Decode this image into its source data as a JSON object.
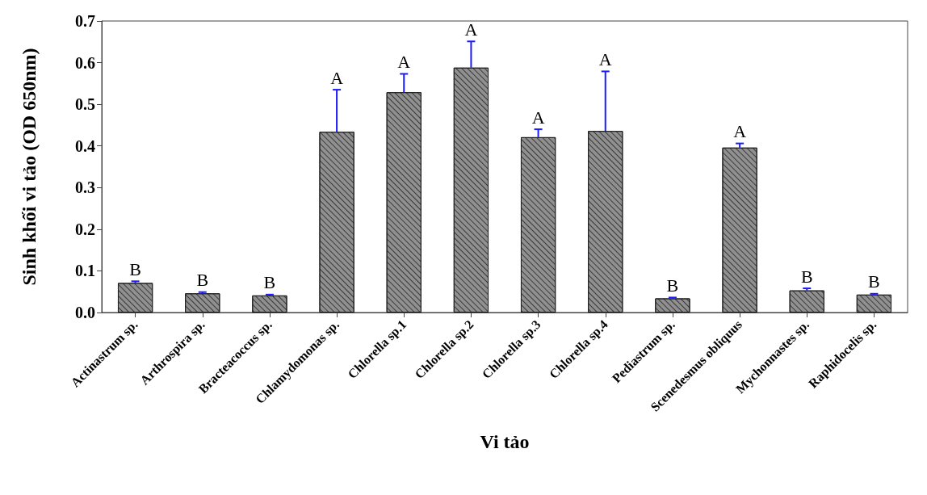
{
  "chart_data": {
    "type": "bar",
    "xlabel": "Vi tảo",
    "ylabel": "Sinh khối vi tảo (OD 650nm)",
    "categories": [
      "Actinastrum sp.",
      "Arthrospira sp.",
      "Bracteacoccus sp.",
      "Chlamydomonas sp.",
      "Chlorella sp.1",
      "Chlorella sp.2",
      "Chlorella sp.3",
      "Chlorella sp.4",
      "Pediastrum sp.",
      "Scenedesmus obliquus",
      "Mychonnastes sp.",
      "Raphidocelis sp."
    ],
    "values": [
      0.071,
      0.046,
      0.041,
      0.434,
      0.529,
      0.588,
      0.421,
      0.436,
      0.034,
      0.396,
      0.053,
      0.043
    ],
    "color": "#909090",
    "errors": [
      [
        0.071,
        0.075
      ],
      [
        0.046,
        0.049
      ],
      [
        0.041,
        0.043
      ],
      [
        0.434,
        0.535
      ],
      [
        0.529,
        0.573
      ],
      [
        0.588,
        0.651
      ],
      [
        0.421,
        0.44
      ],
      [
        0.436,
        0.579
      ],
      [
        0.034,
        0.036
      ],
      [
        0.396,
        0.406
      ],
      [
        0.053,
        0.058
      ],
      [
        0.043,
        0.045
      ]
    ],
    "ylim": [
      0,
      0.7
    ],
    "yticks": [
      "0.0",
      0.1,
      0.2,
      0.3,
      0.4,
      0.5,
      0.6,
      0.7
    ],
    "annotations": [
      {
        "text": "B",
        "x": "Actinastrum sp.",
        "y": 0.075
      },
      {
        "text": "B",
        "x": "Arthrospira sp.",
        "y": 0.049
      },
      {
        "text": "B",
        "x": "Bracteacoccus sp.",
        "y": 0.043
      },
      {
        "text": "A",
        "x": "Chlamydomonas sp.",
        "y": 0.535
      },
      {
        "text": "A",
        "x": "Chlorella sp.1",
        "y": 0.573
      },
      {
        "text": "A",
        "x": "Chlorella sp.2",
        "y": 0.651
      },
      {
        "text": "A",
        "x": "Chlorella sp.3",
        "y": 0.44
      },
      {
        "text": "A",
        "x": "Chlorella sp.4",
        "y": 0.579
      },
      {
        "text": "B",
        "x": "Pediastrum sp.",
        "y": 0.036
      },
      {
        "text": "A",
        "x": "Scenedesmus obliquus",
        "y": 0.406
      },
      {
        "text": "B",
        "x": "Mychonnastes sp.",
        "y": 0.058
      },
      {
        "text": "B",
        "x": "Raphidocelis sp.",
        "y": 0.045
      }
    ]
  }
}
